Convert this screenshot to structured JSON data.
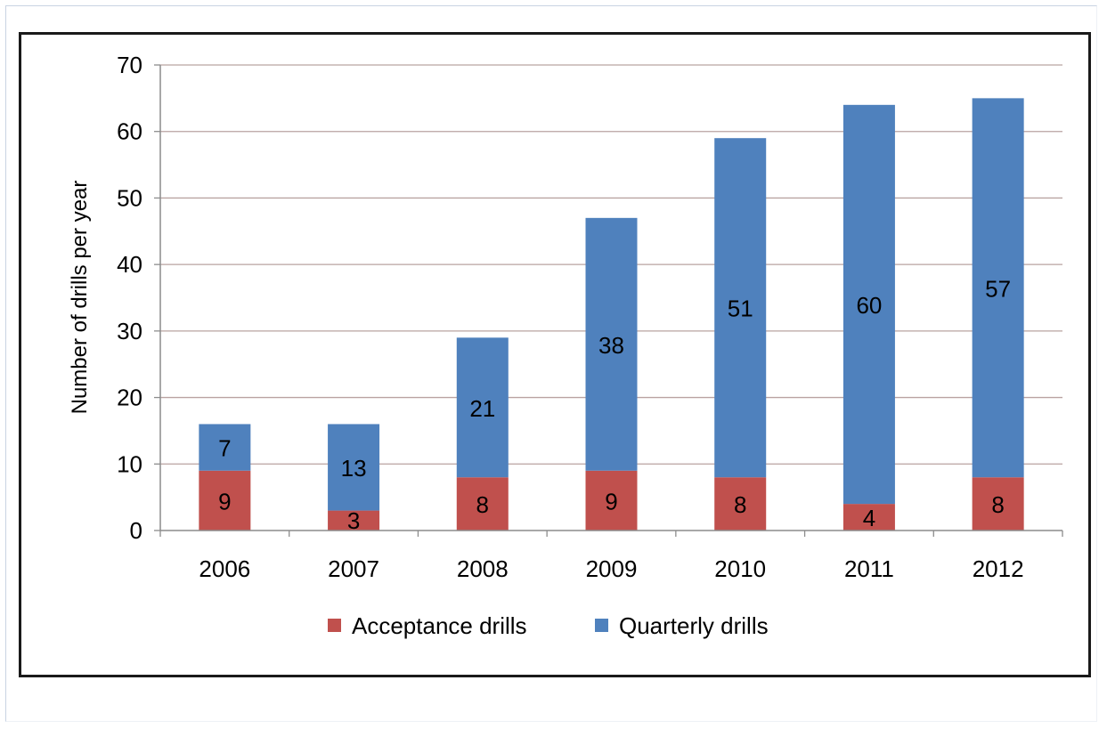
{
  "chart_data": {
    "type": "bar",
    "stacked": true,
    "title": "",
    "xlabel": "",
    "ylabel": "Number of drills per year",
    "categories": [
      "2006",
      "2007",
      "2008",
      "2009",
      "2010",
      "2011",
      "2012"
    ],
    "series": [
      {
        "name": "Acceptance drills",
        "values": [
          9,
          3,
          8,
          9,
          8,
          4,
          8
        ],
        "color": "#c0504d"
      },
      {
        "name": "Quarterly drills",
        "values": [
          7,
          13,
          21,
          38,
          51,
          60,
          57
        ],
        "color": "#4f81bd"
      }
    ],
    "ylim": [
      0,
      70
    ],
    "yticks": [
      "0",
      "10",
      "20",
      "30",
      "40",
      "50",
      "60",
      "70"
    ],
    "grid": true,
    "legend_position": "bottom",
    "data_labels": true
  }
}
